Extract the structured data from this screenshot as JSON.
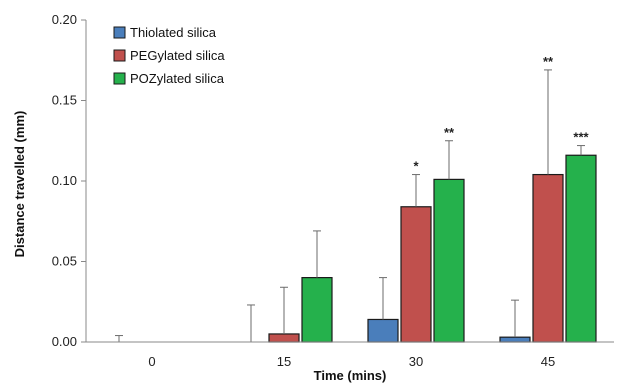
{
  "chart_data": {
    "type": "bar",
    "title": "",
    "xlabel": "Time (mins)",
    "ylabel": "Distance travelled (mm)",
    "ylim": [
      0,
      0.2
    ],
    "yticks": [
      "0.00",
      "0.05",
      "0.10",
      "0.15",
      "0.20"
    ],
    "categories": [
      "0",
      "15",
      "30",
      "45"
    ],
    "legend_position": "top-left",
    "grid": false,
    "series": [
      {
        "name": "Thiolated silica",
        "color": "#4a7ebb",
        "values": [
          0.0,
          0.0,
          0.014,
          0.003
        ],
        "errors": [
          0.004,
          0.023,
          0.026,
          0.023
        ],
        "significance": [
          "",
          "",
          "",
          ""
        ]
      },
      {
        "name": "PEGylated silica",
        "color": "#c0504d",
        "values": [
          0.0,
          0.005,
          0.084,
          0.104
        ],
        "errors": [
          0.0,
          0.029,
          0.02,
          0.065
        ],
        "significance": [
          "",
          "",
          "*",
          "**"
        ]
      },
      {
        "name": "POZylated silica",
        "color": "#25b14c",
        "values": [
          0.0,
          0.04,
          0.101,
          0.116
        ],
        "errors": [
          0.0,
          0.029,
          0.024,
          0.006
        ],
        "significance": [
          "",
          "",
          "**",
          "***"
        ]
      }
    ]
  }
}
